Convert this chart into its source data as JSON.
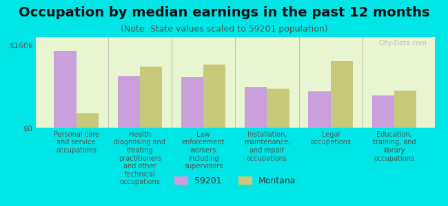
{
  "title": "Occupation by median earnings in the past 12 months",
  "subtitle": "(Note: State values scaled to 59201 population)",
  "categories": [
    "Personal care\nand service\noccupations",
    "Health\ndiagnosing and\ntreating\npractitioners\nand other\ntechnical\noccupations",
    "Law\nenforcement\nworkers\nincluding\nsupervisors",
    "Installation,\nmaintenance,\nand repair\noccupations",
    "Legal\noccupations",
    "Education,\ntraining, and\nlibrary\noccupations"
  ],
  "values_59201": [
    148000,
    100000,
    98000,
    78000,
    70000,
    62000
  ],
  "values_montana": [
    28000,
    118000,
    122000,
    75000,
    128000,
    72000
  ],
  "color_59201": "#c9a0dc",
  "color_montana": "#c8c87a",
  "bar_width": 0.35,
  "ylim": [
    0,
    175000
  ],
  "yticks": [
    0,
    160000
  ],
  "ytick_labels": [
    "$0",
    "$160k"
  ],
  "background_color": "#e8f5d0",
  "outer_background": "#00e5e5",
  "legend_labels": [
    "59201",
    "Montana"
  ],
  "watermark": "City-Data.com",
  "title_fontsize": 14,
  "subtitle_fontsize": 9,
  "label_fontsize": 7,
  "tick_fontsize": 8
}
